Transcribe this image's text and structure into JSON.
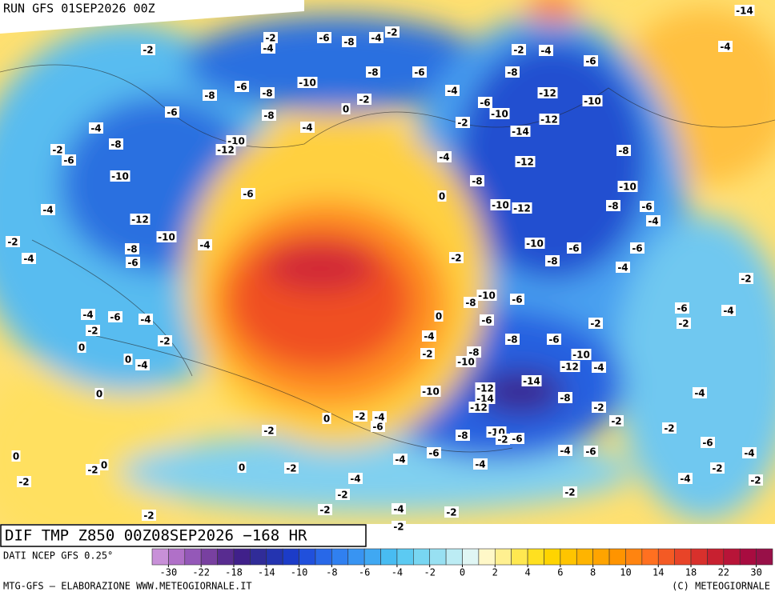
{
  "header": {
    "title": "RUN GFS 01SEP2026 00Z"
  },
  "footer": {
    "title": "DIF TMP Z850 00Z08SEP2026 −168 HR",
    "source": "DATI NCEP GFS 0.25°",
    "credit": "MTG-GFS — ELABORAZIONE WWW.METEOGIORNALE.IT",
    "copyright": "(C) METEOGIORNALE"
  },
  "colorbar": {
    "ticks": [
      -30,
      -22,
      -18,
      -14,
      -10,
      -8,
      -6,
      -4,
      -2,
      0,
      2,
      4,
      6,
      8,
      10,
      14,
      18,
      22,
      30
    ],
    "colors": [
      "#c890d8",
      "#b070c8",
      "#9458b8",
      "#7840a0",
      "#582c90",
      "#40208a",
      "#302c98",
      "#2434b0",
      "#1c3cc8",
      "#2050dc",
      "#2868e8",
      "#3080f0",
      "#3894f2",
      "#40a8f2",
      "#48bcf2",
      "#5ccaf2",
      "#78d6f2",
      "#98e0f2",
      "#bcecf4",
      "#e0f6f4",
      "#fff8c8",
      "#fff090",
      "#ffe850",
      "#ffe020",
      "#ffd400",
      "#ffc400",
      "#ffb400",
      "#ffa400",
      "#ff9400",
      "#ff8410",
      "#ff7020",
      "#f45a24",
      "#e84428",
      "#d8302c",
      "#c82030",
      "#b81438",
      "#a80c40",
      "#981048"
    ]
  },
  "labels": [
    "-14",
    "-2",
    "-6",
    "-8",
    "-4",
    "-2",
    "-4",
    "-2",
    "-2",
    "-4",
    "-4",
    "-6",
    "-10",
    "-8",
    "-6",
    "-6",
    "-8",
    "-8",
    "-4",
    "-8",
    "-12",
    "-10",
    "-2",
    "0",
    "-6",
    "-8",
    "-6",
    "-10",
    "-2",
    "-12",
    "-4",
    "-4",
    "-14",
    "-10",
    "-12",
    "-8",
    "-2",
    "-6",
    "-8",
    "-4",
    "-12",
    "-10",
    "-8",
    "-10",
    "-6",
    "0",
    "-10",
    "-12",
    "-8",
    "-6",
    "-4",
    "-4",
    "-12",
    "-10",
    "-4",
    "-8",
    "-6",
    "-2",
    "-4",
    "-10",
    "-6",
    "-6",
    "-2",
    "-8",
    "-4",
    "-2",
    "-10",
    "-8",
    "-6",
    "-4",
    "-6",
    "-4",
    "0",
    "-6",
    "-6",
    "-4",
    "-2",
    "-2",
    "-4",
    "-2",
    "-2",
    "0",
    "-8",
    "-6",
    "-10",
    "-2",
    "-8",
    "-10",
    "0",
    "-4",
    "-12",
    "-4",
    "-14",
    "-10",
    "-12",
    "-14",
    "-8",
    "0",
    "-4",
    "-2",
    "-12",
    "-2",
    "-4",
    "0",
    "-2",
    "-6",
    "-2",
    "-2",
    "-8",
    "-10",
    "-2",
    "-6",
    "-6",
    "-4",
    "-6",
    "-6",
    "-4",
    "-4",
    "0",
    "-2",
    "0",
    "0",
    "-2",
    "-4",
    "-2",
    "-4",
    "-2",
    "-2",
    "-4",
    "-2",
    "-2",
    "-4",
    "-2",
    "-2",
    "-2",
    "-2"
  ]
}
